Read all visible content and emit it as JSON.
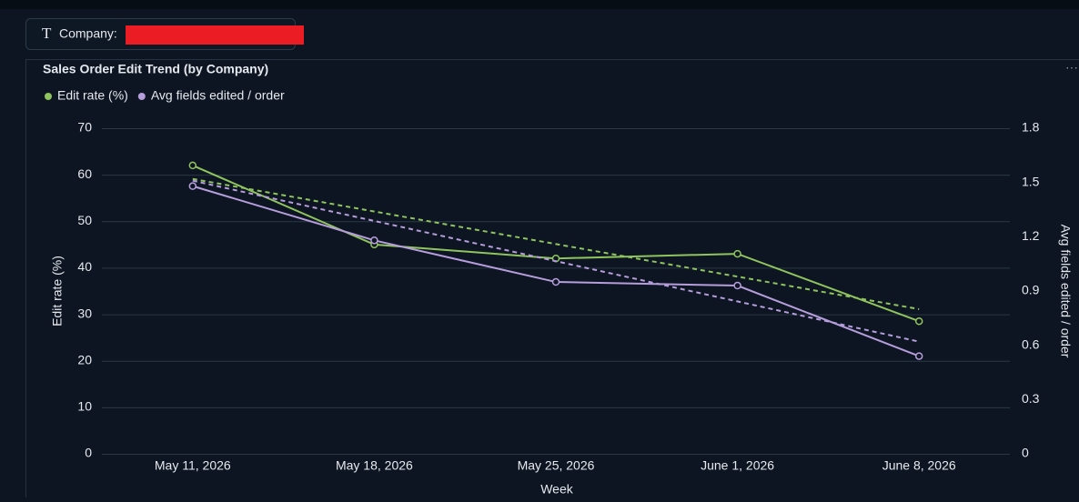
{
  "filter": {
    "label": "Company:"
  },
  "chart_data": {
    "type": "line",
    "title": "Sales Order Edit Trend (by Company)",
    "categories": [
      "May 11, 2026",
      "May 18, 2026",
      "May 25, 2026",
      "June 1, 2026",
      "June 8, 2026"
    ],
    "x_label": "Week",
    "y_label": "Edit rate (%)",
    "y2_label": "Avg fields edited / order",
    "ylim": [
      0,
      70
    ],
    "yticks": [
      0,
      10,
      20,
      30,
      40,
      50,
      60,
      70
    ],
    "y2lim": [
      0,
      1.8
    ],
    "y2ticks": [
      0,
      0.3,
      0.6,
      0.9,
      1.2,
      1.5,
      1.8
    ],
    "grid": true,
    "series": [
      {
        "name": "Edit rate (%)",
        "color": "#8fc45e",
        "values": [
          62,
          45,
          42,
          43,
          28.5
        ],
        "trend": [
          59.1,
          31.1
        ]
      },
      {
        "name": "Avg fields edited / order",
        "color": "#b69ddb",
        "axis": "y2",
        "values": [
          1.48,
          1.18,
          0.95,
          0.93,
          0.54
        ],
        "trend": [
          1.51,
          0.62
        ]
      }
    ]
  }
}
